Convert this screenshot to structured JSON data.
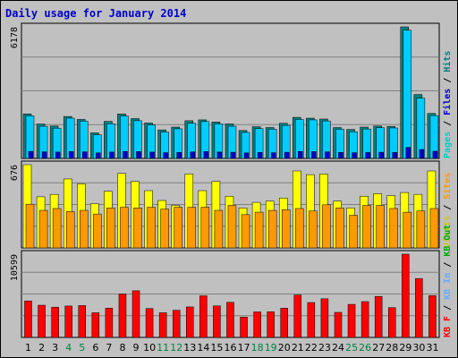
{
  "chart_data": {
    "type": "bar",
    "title": "Daily usage for January 2014",
    "categories": [
      "1",
      "2",
      "3",
      "4",
      "5",
      "6",
      "7",
      "8",
      "9",
      "10",
      "11",
      "12",
      "13",
      "14",
      "15",
      "16",
      "17",
      "18",
      "19",
      "20",
      "21",
      "22",
      "23",
      "24",
      "25",
      "26",
      "27",
      "28",
      "29",
      "30",
      "31"
    ],
    "weekend_categories": [
      "4",
      "5",
      "11",
      "12",
      "18",
      "19",
      "25",
      "26"
    ],
    "colors": {
      "background": "#c0c0c0",
      "title": "#0000cc",
      "hits": "#008080",
      "files": "#00ccff",
      "pages": "#0000cc",
      "visits": "#ffff00",
      "sites": "#ff9900",
      "kbin": "#66aaff",
      "kbout": "#00aa00",
      "kbf": "#ff0000",
      "weekend_label": "#008040"
    },
    "panels": [
      {
        "ymax_label": "6178",
        "ymax": 6178,
        "legend": [
          {
            "text": "Pages",
            "color": "#00cccc"
          },
          {
            "text": "Files",
            "color": "#0000cc"
          },
          {
            "text": "Hits",
            "color": "#008080"
          }
        ],
        "series": [
          {
            "name": "Hits",
            "values": [
              2090,
              1615,
              1520,
              1970,
              1830,
              1200,
              1740,
              2090,
              1870,
              1665,
              1340,
              1470,
              1770,
              1810,
              1710,
              1620,
              1310,
              1490,
              1450,
              1650,
              1930,
              1890,
              1850,
              1450,
              1360,
              1470,
              1520,
              1500,
              6178,
              3000,
              2110
            ]
          },
          {
            "name": "Files",
            "values": [
              2000,
              1510,
              1420,
              1890,
              1750,
              1110,
              1630,
              1990,
              1770,
              1570,
              1240,
              1390,
              1650,
              1730,
              1620,
              1510,
              1220,
              1400,
              1370,
              1550,
              1830,
              1810,
              1760,
              1370,
              1250,
              1380,
              1440,
              1430,
              6020,
              2830,
              2010
            ]
          },
          {
            "name": "Pages",
            "values": [
              330,
              310,
              300,
              320,
              310,
              260,
              300,
              330,
              320,
              300,
              270,
              280,
              310,
              320,
              300,
              290,
              260,
              280,
              270,
              290,
              330,
              320,
              310,
              280,
              270,
              280,
              290,
              280,
              520,
              420,
              340
            ]
          }
        ]
      },
      {
        "ymax_label": "676",
        "ymax": 676,
        "legend": [
          {
            "text": "Visits",
            "color": "#cccc00"
          },
          {
            "text": "Sites",
            "color": "#ff9900"
          }
        ],
        "series": [
          {
            "name": "Visits",
            "values": [
              676,
              415,
              435,
              560,
              520,
              360,
              460,
              605,
              540,
              465,
              385,
              345,
              600,
              465,
              540,
              420,
              325,
              370,
              380,
              405,
              625,
              595,
              600,
              380,
              325,
              420,
              440,
              425,
              450,
              435,
              625
            ]
          },
          {
            "name": "Sites",
            "values": [
              355,
              305,
              320,
              295,
              305,
              275,
              325,
              330,
              325,
              330,
              315,
              330,
              330,
              330,
              305,
              345,
              270,
              290,
              305,
              310,
              320,
              300,
              350,
              325,
              265,
              345,
              345,
              320,
              290,
              300,
              320
            ]
          }
        ]
      },
      {
        "ymax_label": "10599",
        "ymax": 10599,
        "legend": [
          {
            "text": "KB F",
            "color": "#ff0000"
          },
          {
            "text": "KB In",
            "color": "#66aaff"
          },
          {
            "text": "KB Out",
            "color": "#00aa00"
          }
        ],
        "series": [
          {
            "name": "KB F",
            "values": [
              4650,
              4100,
              3850,
              4000,
              4060,
              3140,
              3720,
              5520,
              5940,
              3680,
              3140,
              3460,
              3880,
              5300,
              4020,
              4470,
              2590,
              3250,
              3260,
              3720,
              5400,
              4440,
              4920,
              3190,
              4210,
              4560,
              5220,
              3790,
              10599,
              7500,
              5320
            ]
          }
        ]
      }
    ]
  }
}
